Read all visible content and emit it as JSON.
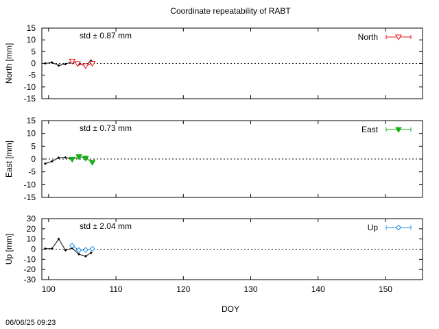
{
  "title": "Coordinate repeatability of RABT",
  "timestamp": "06/06/25 09:23",
  "xlabel": "DOY",
  "x_ticks": [
    100,
    110,
    120,
    130,
    140,
    150
  ],
  "chart_data": [
    {
      "type": "line",
      "ylabel": "North [mm]",
      "xlim": [
        99,
        155.5
      ],
      "ylim": [
        -15,
        15
      ],
      "y_ticks": [
        15,
        10,
        5,
        0,
        -5,
        -10,
        -15
      ],
      "std_label": "std ± 0.87 mm",
      "legend": "North",
      "legend_position": "top-right",
      "color": "#e8121a",
      "marker": "triangle-down-open",
      "black_series": {
        "x": [
          99.5,
          100.5,
          101.5,
          102.5,
          103.5,
          104.5,
          105.5,
          106.3
        ],
        "y": [
          0.0,
          0.4,
          -0.9,
          -0.3,
          0.8,
          -0.4,
          -0.9,
          1.1
        ]
      },
      "series": [
        {
          "name": "North",
          "x": [
            103.5,
            104.3,
            105.5,
            106.5
          ],
          "y": [
            0.9,
            -0.1,
            -1.0,
            0.0
          ],
          "err": [
            0.4,
            0.4,
            0.4,
            0.4
          ]
        }
      ]
    },
    {
      "type": "line",
      "ylabel": "East [mm]",
      "xlim": [
        99,
        155.5
      ],
      "ylim": [
        -15,
        15
      ],
      "y_ticks": [
        15,
        10,
        5,
        0,
        -5,
        -10,
        -15
      ],
      "std_label": "std ± 0.73 mm",
      "legend": "East",
      "legend_position": "top-right",
      "color": "#12b012",
      "marker": "triangle-down-filled",
      "black_series": {
        "x": [
          99.5,
          100.5,
          101.5,
          102.5,
          103.5,
          104.5,
          105.5,
          106.3
        ],
        "y": [
          -1.8,
          -0.9,
          0.5,
          0.6,
          -0.1,
          0.8,
          0.6,
          -1.1
        ]
      },
      "series": [
        {
          "name": "East",
          "x": [
            103.5,
            104.5,
            105.5,
            106.5
          ],
          "y": [
            -0.1,
            0.9,
            0.3,
            -1.3
          ],
          "err": [
            0.4,
            0.4,
            0.4,
            0.4
          ]
        }
      ]
    },
    {
      "type": "line",
      "ylabel": "Up [mm]",
      "xlim": [
        99,
        155.5
      ],
      "ylim": [
        -30,
        30
      ],
      "y_ticks": [
        30,
        20,
        10,
        0,
        -10,
        -20,
        -30
      ],
      "std_label": "std ± 2.04 mm",
      "legend": "Up",
      "legend_position": "top-right",
      "color": "#1a8ae8",
      "marker": "diamond-open",
      "black_series": {
        "x": [
          99.5,
          100.5,
          101.5,
          102.5,
          103.5,
          104.5,
          105.5,
          106.3
        ],
        "y": [
          0.5,
          0.5,
          10.0,
          -1.0,
          1.0,
          -5.0,
          -7.0,
          -3.5
        ]
      },
      "series": [
        {
          "name": "Up",
          "x": [
            103.5,
            104.5,
            105.5,
            106.5
          ],
          "y": [
            3.5,
            -1.0,
            -0.8,
            0.3
          ],
          "err": [
            0.4,
            0.4,
            0.4,
            0.4
          ]
        }
      ]
    }
  ]
}
